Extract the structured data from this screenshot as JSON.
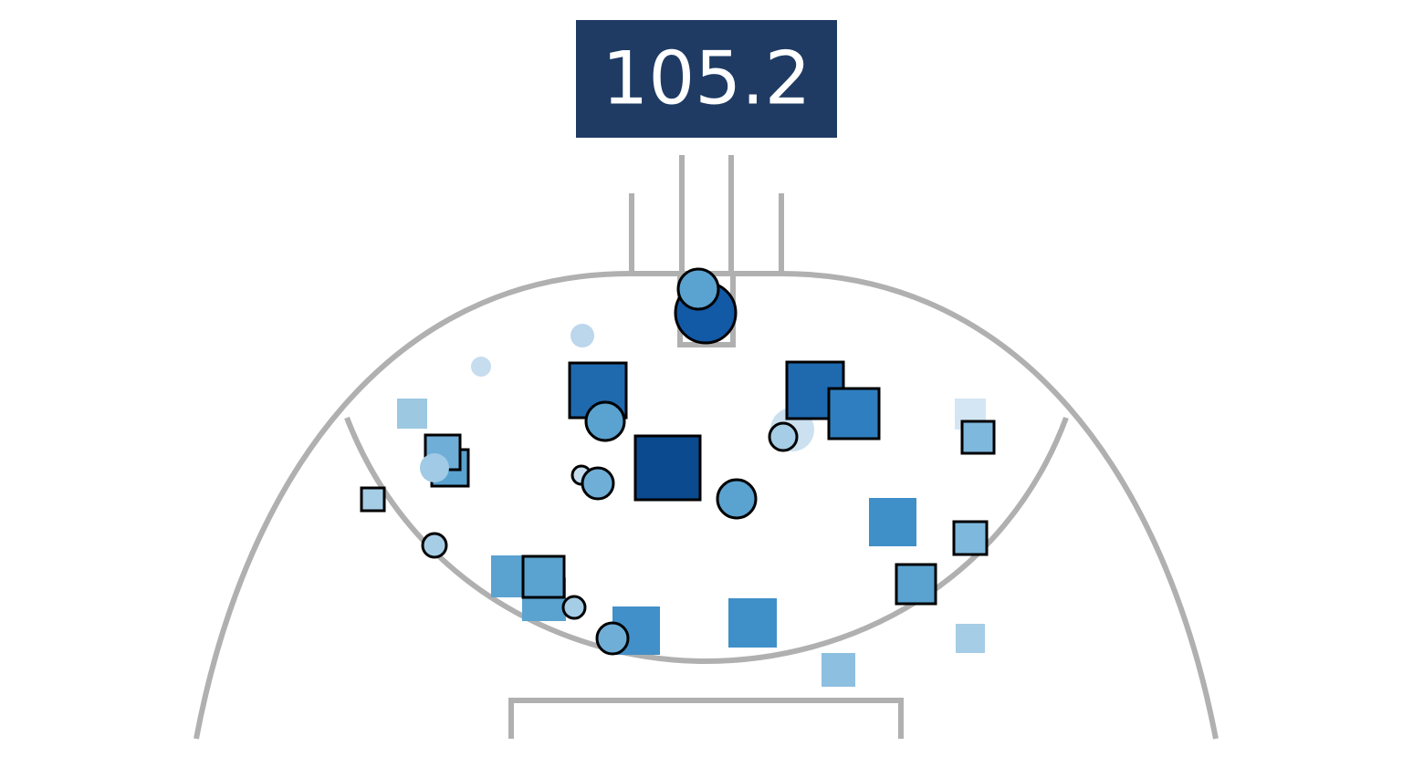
{
  "label": 105.2
}
